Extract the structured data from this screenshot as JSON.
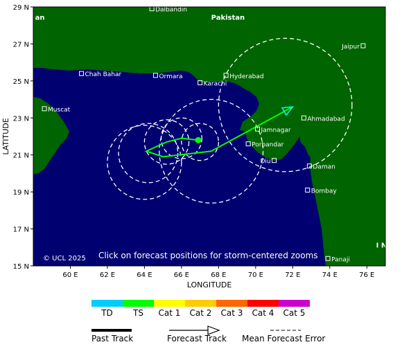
{
  "map": {
    "lon_range": [
      58,
      77
    ],
    "lat_range": [
      15,
      29
    ],
    "x_axis_title": "LONGITUDE",
    "y_axis_title": "LATITUDE",
    "lon_ticks": [
      "60 E",
      "62 E",
      "64 E",
      "66 E",
      "68 E",
      "70 E",
      "72 E",
      "74 E",
      "76 E"
    ],
    "lat_ticks": [
      "29 N",
      "27 N",
      "25 N",
      "23 N",
      "21 N",
      "19 N",
      "17 N",
      "15 N"
    ],
    "ocean_color": "#000070",
    "land_color": "#006400",
    "copyright": "© UCL 2025",
    "note": "Click on forecast positions for storm-centered zooms",
    "countries": [
      {
        "name": "Pakistan",
        "lon": 67.6,
        "lat": 28.3
      },
      {
        "name": "an",
        "lon": 58.1,
        "lat": 28.3
      },
      {
        "name": "I N",
        "lon": 76.5,
        "lat": 16.0
      }
    ],
    "cities": [
      {
        "name": "Dalbandin",
        "lon": 64.4,
        "lat": 28.9
      },
      {
        "name": "Chah Bahar",
        "lon": 60.6,
        "lat": 25.4
      },
      {
        "name": "Ormara",
        "lon": 64.6,
        "lat": 25.3
      },
      {
        "name": "Hyderabad",
        "lon": 68.4,
        "lat": 25.3
      },
      {
        "name": "Karachi",
        "lon": 67.0,
        "lat": 24.9
      },
      {
        "name": "Jaipur",
        "lon": 75.8,
        "lat": 26.9
      },
      {
        "name": "Muscat",
        "lon": 58.6,
        "lat": 23.5
      },
      {
        "name": "Ahmadabad",
        "lon": 72.6,
        "lat": 23.0
      },
      {
        "name": "Jamnagar",
        "lon": 70.1,
        "lat": 22.4
      },
      {
        "name": "Porbandar",
        "lon": 69.6,
        "lat": 21.6
      },
      {
        "name": "Diu",
        "lon": 71.0,
        "lat": 20.7
      },
      {
        "name": "Daman",
        "lon": 72.9,
        "lat": 20.4
      },
      {
        "name": "Bombay",
        "lon": 72.8,
        "lat": 19.1
      },
      {
        "name": "Panaji",
        "lon": 73.9,
        "lat": 15.4
      }
    ],
    "storm": {
      "past_track": [
        [
          66.9,
          21.8
        ],
        [
          67.0,
          21.65
        ]
      ],
      "current_position": [
        66.9,
        21.8
      ],
      "forecast_track": [
        [
          66.9,
          21.8
        ],
        [
          66.0,
          21.9
        ],
        [
          65.2,
          21.7
        ],
        [
          64.1,
          21.2
        ],
        [
          65.0,
          20.9
        ],
        [
          67.6,
          21.2
        ],
        [
          72.0,
          23.6
        ]
      ],
      "error_circles": [
        {
          "lon": 67.0,
          "lat": 21.7,
          "r_deg": 1.0
        },
        {
          "lon": 66.0,
          "lat": 21.9,
          "r_deg": 1.1
        },
        {
          "lon": 65.2,
          "lat": 21.7,
          "r_deg": 1.2
        },
        {
          "lon": 64.2,
          "lat": 21.1,
          "r_deg": 1.6
        },
        {
          "lon": 64.0,
          "lat": 20.6,
          "r_deg": 2.0
        },
        {
          "lon": 67.6,
          "lat": 21.2,
          "r_deg": 2.8
        },
        {
          "lon": 71.6,
          "lat": 23.7,
          "r_deg": 3.6
        }
      ]
    }
  },
  "legend": {
    "categories": [
      {
        "label": "TD",
        "color": "#00ccff"
      },
      {
        "label": "TS",
        "color": "#00ff00"
      },
      {
        "label": "Cat 1",
        "color": "#ffff00"
      },
      {
        "label": "Cat 2",
        "color": "#ffcc00"
      },
      {
        "label": "Cat 3",
        "color": "#ff6600"
      },
      {
        "label": "Cat 4",
        "color": "#ff0000"
      },
      {
        "label": "Cat 5",
        "color": "#cc00cc"
      }
    ],
    "past_track": "Past Track",
    "forecast_track": "Forecast Track",
    "mean_error": "Mean Forecast Error"
  }
}
